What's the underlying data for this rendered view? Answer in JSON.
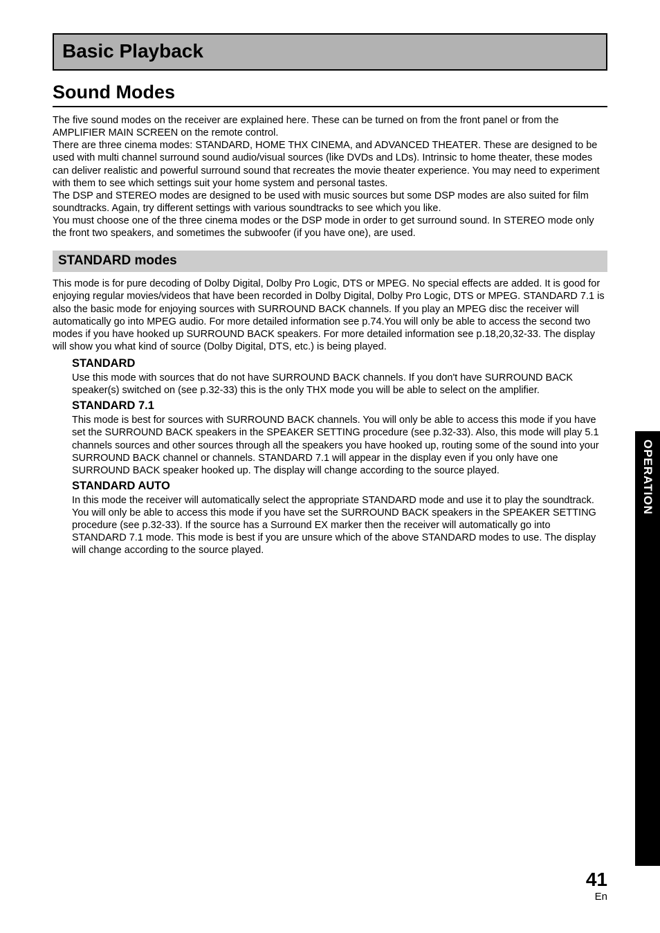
{
  "chapter_title": "Basic Playback",
  "section_title": "Sound Modes",
  "intro_paragraph": "The five sound modes on the receiver are explained here. These can be turned on from the front panel or from the AMPLIFIER MAIN SCREEN on the remote control.\nThere are three cinema modes: STANDARD, HOME THX CINEMA, and ADVANCED THEATER. These are designed to be used with multi channel surround sound audio/visual sources (like DVDs and LDs). Intrinsic to home theater, these modes can deliver realistic and powerful surround sound that recreates the movie theater experience. You may need to experiment with them to see which settings suit your home system and personal tastes.\nThe DSP and STEREO modes are designed to be used with music sources but some DSP modes are also suited for film soundtracks. Again, try different settings with various soundtracks to see which you like.\nYou must choose one of the three cinema modes or the DSP mode in order to get surround sound. In STEREO mode only the front two speakers, and sometimes the subwoofer (if you have one), are used.",
  "subsection_title": "STANDARD modes",
  "subsection_body": "This mode is for pure decoding of Dolby Digital, Dolby Pro Logic, DTS or MPEG. No special effects are added. It is good for enjoying regular movies/videos that have been recorded in Dolby Digital, Dolby Pro Logic, DTS or MPEG. STANDARD 7.1 is also the basic mode for enjoying sources with SURROUND BACK channels. If you play an MPEG disc the receiver will automatically go into MPEG audio. For more detailed information see p.74.You will only be able to access the second two modes if you have hooked up SURROUND BACK speakers. For more detailed information see p.18,20,32-33. The display will show you what kind of source (Dolby Digital, DTS, etc.) is being played.",
  "modes": [
    {
      "title": "STANDARD",
      "body": "Use this mode with sources that do not have SURROUND BACK channels. If you don't have SURROUND BACK speaker(s) switched on (see p.32-33) this is the only THX mode you will be able to select on the amplifier."
    },
    {
      "title": "STANDARD 7.1",
      "body": "This mode is best for sources with SURROUND BACK channels. You will only be able to access this mode if you have set the SURROUND BACK speakers in the SPEAKER SETTING procedure (see p.32-33). Also, this mode will play 5.1 channels sources and other sources through all the speakers you have hooked up, routing some of the sound into your SURROUND BACK channel or channels. STANDARD 7.1 will appear in the display even if you only have one SURROUND BACK speaker hooked up. The display will change according to the source played."
    },
    {
      "title": "STANDARD AUTO",
      "body": "In this mode the receiver will automatically select the appropriate STANDARD mode and use it to play the soundtrack. You will only be able to access this mode if you have set the SURROUND BACK speakers in the SPEAKER SETTING procedure (see p.32-33). If the source has a Surround EX marker then the receiver will automatically go into STANDARD 7.1 mode. This mode is best if you are unsure which of the above STANDARD modes to use. The display will change according to the source played."
    }
  ],
  "side_tab": "OPERATION",
  "page_number": "41",
  "lang_code": "En",
  "colors": {
    "chapter_bg": "#b2b2b2",
    "subsection_bg": "#cccccc",
    "tab_bg": "#000000",
    "tab_fg": "#ffffff",
    "text": "#000000",
    "page_bg": "#ffffff"
  },
  "typography": {
    "chapter_title_pt": 28,
    "section_title_pt": 27,
    "subsection_title_pt": 19,
    "mode_title_pt": 16.5,
    "body_pt": 14.5,
    "page_number_pt": 28,
    "side_tab_pt": 17
  }
}
